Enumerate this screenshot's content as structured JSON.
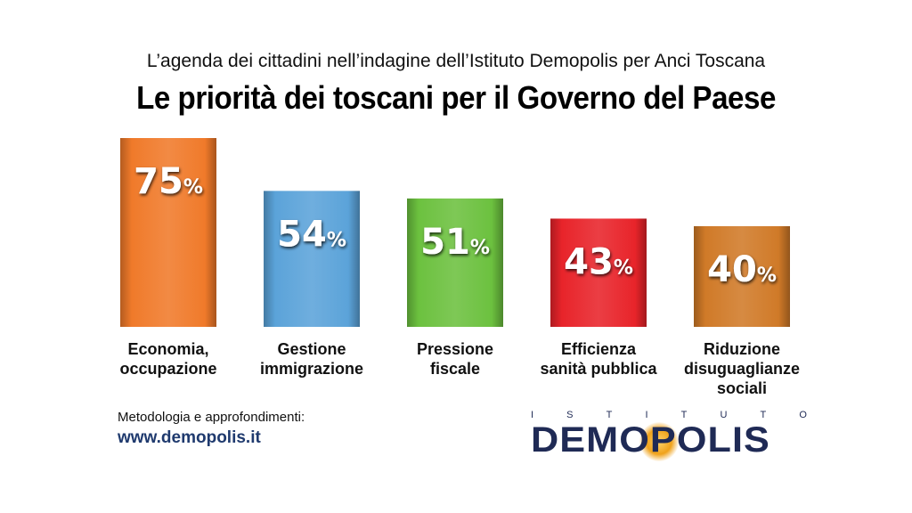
{
  "header": {
    "subtitle": "L’agenda dei cittadini nell’indagine dell’Istituto Demopolis per Anci Toscana",
    "title": "Le priorità dei toscani per il Governo del Paese"
  },
  "chart_data": {
    "type": "bar",
    "categories": [
      "Economia, occupazione",
      "Gestione immigrazione",
      "Pressione fiscale",
      "Efficienza sanità pubblica",
      "Riduzione disuguaglianze sociali"
    ],
    "category_lines": [
      [
        "Economia,",
        "occupazione"
      ],
      [
        "Gestione",
        "immigrazione"
      ],
      [
        "Pressione",
        "fiscale"
      ],
      [
        "Efficienza",
        "sanità pubblica"
      ],
      [
        "Riduzione",
        "disuguaglianze",
        "sociali"
      ]
    ],
    "values": [
      75,
      54,
      51,
      43,
      40
    ],
    "value_suffix": "%",
    "colors": [
      "#f07a2a",
      "#5ba3d9",
      "#6cc13f",
      "#e8242a",
      "#d07a28"
    ],
    "ylim": [
      0,
      75
    ],
    "grid": false
  },
  "footer": {
    "method_label": "Metodologia e approfondimenti:",
    "link": "www.demopolis.it"
  },
  "logo": {
    "top_text": "ISTITUTO",
    "main_text": "DEMOPOLIS"
  }
}
